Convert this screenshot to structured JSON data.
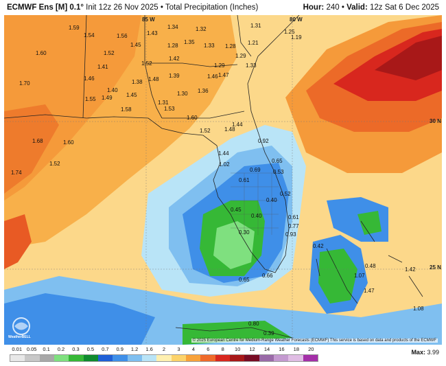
{
  "header": {
    "model": "ECMWF Ens [M] 0.1°",
    "init": "Init 12z 26 Nov 2025",
    "product": "Total Precipitation (Inches)",
    "hour_label": "Hour:",
    "hour": "240",
    "valid_label": "Valid:",
    "valid": "12z Sat 6 Dec 2025"
  },
  "map": {
    "lat_lon_labels": [
      "85 W",
      "80 W",
      "30 N",
      "25 N"
    ],
    "values": [
      "1.59",
      "1.54",
      "1.56",
      "1.43",
      "1.34",
      "1.32",
      "1.31",
      "1.25",
      "1.19",
      "1.60",
      "1.52",
      "1.45",
      "1.28",
      "1.35",
      "1.33",
      "1.28",
      "1.21",
      "1.41",
      "1.52",
      "1.42",
      "1.29",
      "1.29",
      "1.33",
      "1.70",
      "1.46",
      "1.38",
      "1.48",
      "1.39",
      "1.46",
      "1.47",
      "1.40",
      "1.45",
      "1.30",
      "1.36",
      "1.55",
      "1.49",
      "1.58",
      "1.31",
      "1.53",
      "1.60",
      "1.52",
      "1.48",
      "1.44",
      "1.68",
      "1.60",
      "1.52",
      "1.74",
      "1.44",
      "1.02",
      "0.92",
      "0.65",
      "0.69",
      "0.53",
      "0.61",
      "0.40",
      "0.52",
      "0.45",
      "0.40",
      "0.61",
      "0.77",
      "0.30",
      "0.93",
      "0.42",
      "0.48",
      "1.07",
      "1.42",
      "1.47",
      "1.08",
      "0.65",
      "0.80",
      "0.39",
      "0.66"
    ]
  },
  "copyright": "© 2025 European Centre for Medium-Range Weather Forecasts (ECMWF) This service is based on data and products of the ECMWF",
  "logo_text": "WeatherBELL",
  "legend": {
    "labels": [
      "0.01",
      "0.05",
      "0.1",
      "0.2",
      "0.3",
      "0.5",
      "0.7",
      "0.9",
      "1.2",
      "1.6",
      "2",
      "3",
      "4",
      "6",
      "8",
      "10",
      "12",
      "14",
      "16",
      "18",
      "20"
    ],
    "colors": [
      "#e8e8e8",
      "#c8c8c8",
      "#a8a8a8",
      "#7fe07f",
      "#36b836",
      "#0f8a2e",
      "#1f5fd6",
      "#3f8fe8",
      "#7fbff0",
      "#b9e4f7",
      "#fff0b0",
      "#fcd36a",
      "#f8a23a",
      "#ef6a2a",
      "#d8271e",
      "#a81818",
      "#780c24",
      "#9a6aa8",
      "#c49ad0",
      "#e0bde4",
      "#a42fa8"
    ],
    "max_label": "Max:",
    "max_value": "3.99"
  }
}
